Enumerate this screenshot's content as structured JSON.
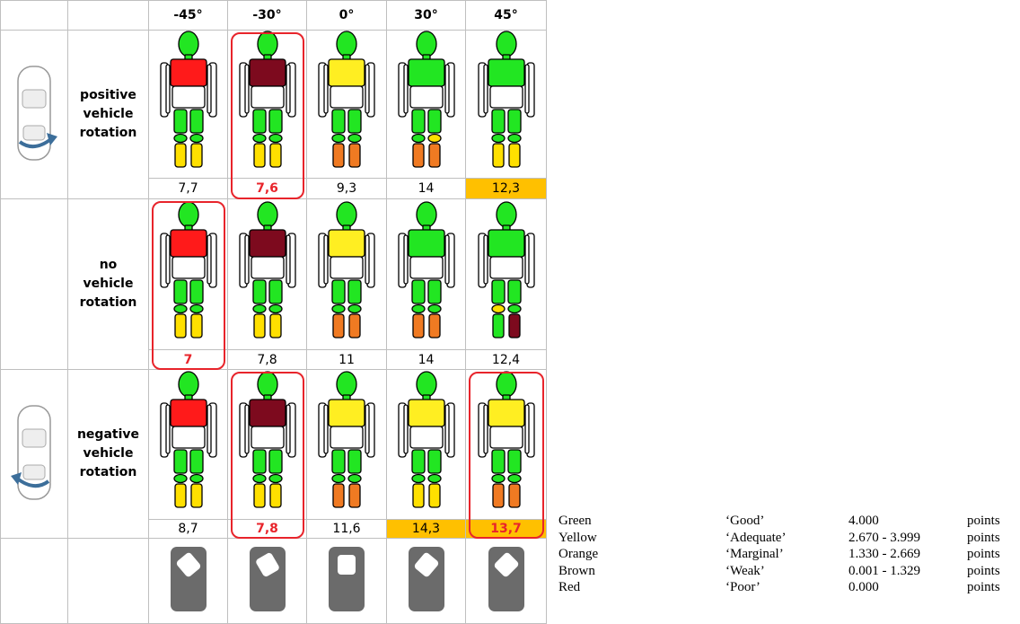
{
  "table": {
    "columns": [
      "-45°",
      "-30°",
      "0°",
      "30°",
      "45°"
    ],
    "colors": {
      "head": "#22e622",
      "upper_legs": "#22e622",
      "frame": "#e8242b",
      "score_highlight": "#ffc000"
    },
    "rows": [
      {
        "label": "positive vehicle rotation",
        "cells": [
          {
            "chest": "#ff1a1a",
            "knees": [
              "#22e622",
              "#22e622"
            ],
            "lower": [
              "#ffe000",
              "#ffe000"
            ],
            "score": "7,7",
            "framed": false,
            "highlight": false
          },
          {
            "chest": "#7d0a1e",
            "knees": [
              "#22e622",
              "#22e622"
            ],
            "lower": [
              "#ffe000",
              "#ffe000"
            ],
            "score": "7,6",
            "framed": true,
            "highlight": false
          },
          {
            "chest": "#ffee22",
            "knees": [
              "#22e622",
              "#22e622"
            ],
            "lower": [
              "#f07a22",
              "#f07a22"
            ],
            "score": "9,3",
            "framed": false,
            "highlight": false
          },
          {
            "chest": "#22e622",
            "knees": [
              "#22e622",
              "#ffe000"
            ],
            "lower": [
              "#f07a22",
              "#f07a22"
            ],
            "score": "14",
            "framed": false,
            "highlight": false
          },
          {
            "chest": "#22e622",
            "knees": [
              "#22e622",
              "#22e622"
            ],
            "lower": [
              "#ffe000",
              "#ffe000"
            ],
            "score": "12,3",
            "framed": false,
            "highlight": true
          }
        ]
      },
      {
        "label": "no vehicle rotation",
        "cells": [
          {
            "chest": "#ff1a1a",
            "knees": [
              "#22e622",
              "#22e622"
            ],
            "lower": [
              "#ffe000",
              "#ffe000"
            ],
            "score": "7",
            "framed": true,
            "highlight": false
          },
          {
            "chest": "#7d0a1e",
            "knees": [
              "#22e622",
              "#22e622"
            ],
            "lower": [
              "#ffe000",
              "#ffe000"
            ],
            "score": "7,8",
            "framed": false,
            "highlight": false
          },
          {
            "chest": "#ffee22",
            "knees": [
              "#22e622",
              "#22e622"
            ],
            "lower": [
              "#f07a22",
              "#f07a22"
            ],
            "score": "11",
            "framed": false,
            "highlight": false
          },
          {
            "chest": "#22e622",
            "knees": [
              "#22e622",
              "#22e622"
            ],
            "lower": [
              "#f07a22",
              "#f07a22"
            ],
            "score": "14",
            "framed": false,
            "highlight": false
          },
          {
            "chest": "#22e622",
            "knees": [
              "#ffe000",
              "#22e622"
            ],
            "lower": [
              "#22e622",
              "#7d0a1e"
            ],
            "score": "12,4",
            "framed": false,
            "highlight": false
          }
        ]
      },
      {
        "label": "negative vehicle rotation",
        "cells": [
          {
            "chest": "#ff1a1a",
            "knees": [
              "#22e622",
              "#22e622"
            ],
            "lower": [
              "#ffe000",
              "#ffe000"
            ],
            "score": "8,7",
            "framed": false,
            "highlight": false
          },
          {
            "chest": "#7d0a1e",
            "knees": [
              "#22e622",
              "#22e622"
            ],
            "lower": [
              "#ffe000",
              "#ffe000"
            ],
            "score": "7,8",
            "framed": true,
            "highlight": false
          },
          {
            "chest": "#ffee22",
            "knees": [
              "#22e622",
              "#22e622"
            ],
            "lower": [
              "#f07a22",
              "#f07a22"
            ],
            "score": "11,6",
            "framed": false,
            "highlight": false
          },
          {
            "chest": "#ffee22",
            "knees": [
              "#22e622",
              "#22e622"
            ],
            "lower": [
              "#ffe000",
              "#ffe000"
            ],
            "score": "14,3",
            "framed": false,
            "highlight": true
          },
          {
            "chest": "#ffee22",
            "knees": [
              "#22e622",
              "#22e622"
            ],
            "lower": [
              "#f07a22",
              "#f07a22"
            ],
            "score": "13,7",
            "framed": true,
            "highlight": true
          }
        ]
      }
    ]
  },
  "legend": {
    "rows": [
      [
        "Green",
        "‘Good’",
        "4.000",
        "points"
      ],
      [
        "Yellow",
        "‘Adequate’",
        "2.670 - 3.999",
        "points"
      ],
      [
        "Orange",
        "‘Marginal’",
        "1.330 - 2.669",
        "points"
      ],
      [
        "Brown",
        "‘Weak’",
        "0.001 - 1.329",
        "points"
      ],
      [
        "Red",
        "‘Poor’",
        "0.000",
        "points"
      ]
    ]
  }
}
